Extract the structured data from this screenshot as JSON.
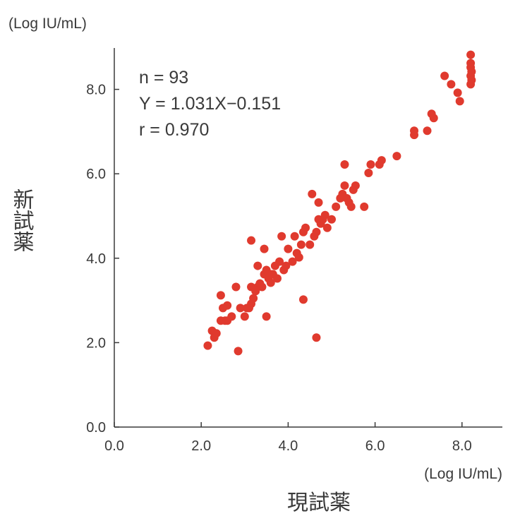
{
  "chart_data": {
    "type": "scatter",
    "xlabel": "現試薬",
    "ylabel": "新試薬",
    "x_unit": "(Log IU/mL)",
    "y_unit": "(Log IU/mL)",
    "xlim": [
      0,
      8.9
    ],
    "ylim": [
      0,
      9.0
    ],
    "x_ticks": [
      "0.0",
      "2.0",
      "4.0",
      "6.0",
      "8.0"
    ],
    "y_ticks": [
      "0.0",
      "2.0",
      "4.0",
      "6.0",
      "8.0"
    ],
    "grid": false,
    "point_color": "#e03a2e",
    "annotations": [
      "n = 93",
      "Y = 1.031X−0.151",
      "r = 0.970"
    ],
    "points": [
      [
        2.15,
        1.93
      ],
      [
        2.85,
        1.8
      ],
      [
        2.25,
        2.28
      ],
      [
        2.3,
        2.12
      ],
      [
        2.35,
        2.22
      ],
      [
        2.45,
        2.52
      ],
      [
        2.5,
        2.82
      ],
      [
        2.55,
        2.52
      ],
      [
        2.6,
        2.88
      ],
      [
        2.7,
        2.62
      ],
      [
        2.45,
        3.12
      ],
      [
        2.8,
        3.32
      ],
      [
        2.9,
        2.82
      ],
      [
        3.0,
        2.62
      ],
      [
        3.05,
        2.82
      ],
      [
        3.1,
        2.82
      ],
      [
        3.15,
        2.92
      ],
      [
        3.15,
        3.32
      ],
      [
        3.2,
        3.05
      ],
      [
        3.25,
        3.22
      ],
      [
        3.3,
        3.32
      ],
      [
        3.35,
        3.4
      ],
      [
        3.4,
        3.32
      ],
      [
        3.45,
        3.62
      ],
      [
        3.5,
        3.72
      ],
      [
        3.5,
        2.62
      ],
      [
        3.55,
        3.52
      ],
      [
        3.6,
        3.62
      ],
      [
        3.65,
        3.62
      ],
      [
        3.7,
        3.82
      ],
      [
        3.75,
        3.52
      ],
      [
        3.8,
        3.92
      ],
      [
        3.9,
        3.72
      ],
      [
        3.95,
        3.82
      ],
      [
        4.0,
        4.22
      ],
      [
        4.1,
        3.92
      ],
      [
        4.15,
        4.52
      ],
      [
        4.2,
        4.12
      ],
      [
        4.3,
        4.32
      ],
      [
        4.35,
        4.62
      ],
      [
        4.4,
        4.72
      ],
      [
        4.5,
        4.32
      ],
      [
        4.55,
        5.52
      ],
      [
        4.6,
        4.52
      ],
      [
        4.65,
        4.62
      ],
      [
        4.7,
        4.92
      ],
      [
        4.75,
        4.82
      ],
      [
        4.8,
        4.92
      ],
      [
        4.85,
        5.02
      ],
      [
        4.9,
        4.72
      ],
      [
        5.0,
        4.92
      ],
      [
        5.1,
        5.22
      ],
      [
        5.2,
        5.42
      ],
      [
        5.25,
        5.52
      ],
      [
        5.3,
        5.72
      ],
      [
        5.35,
        5.42
      ],
      [
        5.4,
        5.32
      ],
      [
        5.45,
        5.22
      ],
      [
        5.5,
        5.62
      ],
      [
        5.55,
        5.72
      ],
      [
        5.3,
        6.22
      ],
      [
        5.75,
        5.22
      ],
      [
        5.85,
        6.02
      ],
      [
        5.9,
        6.22
      ],
      [
        6.1,
        6.22
      ],
      [
        6.15,
        6.32
      ],
      [
        6.5,
        6.42
      ],
      [
        4.35,
        3.02
      ],
      [
        4.65,
        2.12
      ],
      [
        4.7,
        5.32
      ],
      [
        3.15,
        4.42
      ],
      [
        3.45,
        4.22
      ],
      [
        3.85,
        4.52
      ],
      [
        3.3,
        3.82
      ],
      [
        6.9,
        6.92
      ],
      [
        6.9,
        7.02
      ],
      [
        7.2,
        7.02
      ],
      [
        7.3,
        7.42
      ],
      [
        7.35,
        7.32
      ],
      [
        7.6,
        8.32
      ],
      [
        7.75,
        8.12
      ],
      [
        7.9,
        7.92
      ],
      [
        7.95,
        7.72
      ],
      [
        8.2,
        8.82
      ],
      [
        8.2,
        8.52
      ],
      [
        8.22,
        8.42
      ],
      [
        8.2,
        8.32
      ],
      [
        8.22,
        8.22
      ],
      [
        8.2,
        8.12
      ],
      [
        8.2,
        8.62
      ],
      [
        4.25,
        4.02
      ],
      [
        3.6,
        3.42
      ],
      [
        2.6,
        2.52
      ]
    ]
  }
}
